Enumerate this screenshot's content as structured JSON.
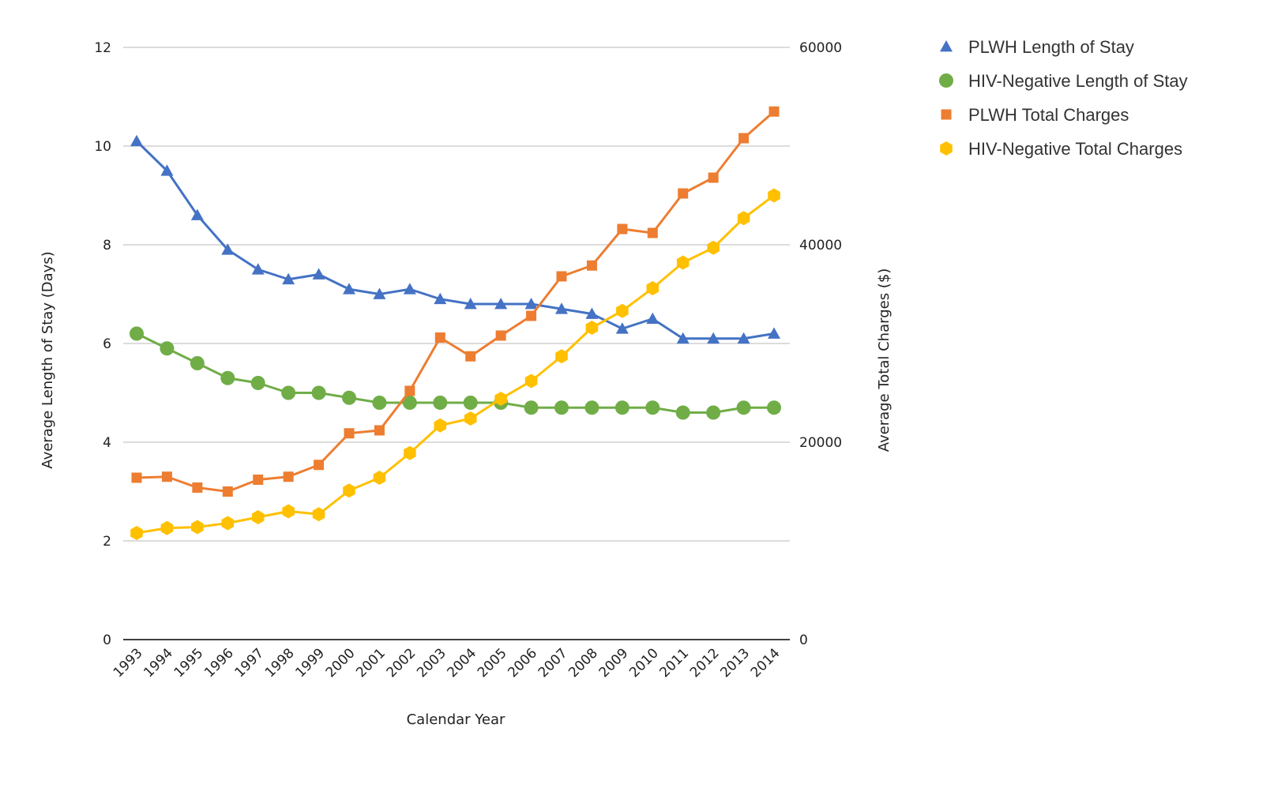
{
  "chart_data": {
    "type": "line",
    "title": "",
    "xlabel": "Calendar Year",
    "ylabel": "Average Length of Stay (Days)",
    "y2label": "Average Total Charges ($)",
    "categories": [
      "1993",
      "1994",
      "1995",
      "1996",
      "1997",
      "1998",
      "1999",
      "2000",
      "2001",
      "2002",
      "2003",
      "2004",
      "2005",
      "2006",
      "2007",
      "2008",
      "2009",
      "2010",
      "2011",
      "2012",
      "2013",
      "2014"
    ],
    "ylim": [
      0,
      12
    ],
    "y_ticks": [
      0,
      2,
      4,
      6,
      8,
      10,
      12
    ],
    "y2lim": [
      0,
      60000
    ],
    "y2_ticks": [
      0,
      20000,
      40000,
      60000
    ],
    "grid": true,
    "legend_position": "right",
    "series": [
      {
        "name": "PLWH Length of Stay",
        "axis": "left",
        "color": "#4472C4",
        "marker": "triangle",
        "values": [
          10.1,
          9.5,
          8.6,
          7.9,
          7.5,
          7.3,
          7.4,
          7.1,
          7.0,
          7.1,
          6.9,
          6.8,
          6.8,
          6.8,
          6.7,
          6.6,
          6.3,
          6.5,
          6.1,
          6.1,
          6.1,
          6.2
        ]
      },
      {
        "name": "HIV-Negative Length of Stay",
        "axis": "left",
        "color": "#70AD47",
        "marker": "circle",
        "values": [
          6.2,
          5.9,
          5.6,
          5.3,
          5.2,
          5.0,
          5.0,
          4.9,
          4.8,
          4.8,
          4.8,
          4.8,
          4.8,
          4.7,
          4.7,
          4.7,
          4.7,
          4.7,
          4.6,
          4.6,
          4.7,
          4.7
        ]
      },
      {
        "name": "PLWH Total Charges",
        "axis": "right",
        "color": "#ED7D31",
        "marker": "square",
        "values": [
          16400,
          16500,
          15400,
          15000,
          16200,
          16500,
          17700,
          20900,
          21200,
          25200,
          30600,
          28700,
          30800,
          32800,
          36800,
          37900,
          41600,
          41200,
          45200,
          46800,
          50800,
          53500
        ]
      },
      {
        "name": "HIV-Negative Total Charges",
        "axis": "right",
        "color": "#FFC000",
        "marker": "hexagon",
        "values": [
          10800,
          11300,
          11400,
          11800,
          12400,
          13000,
          12700,
          15100,
          16400,
          18900,
          21700,
          22400,
          24400,
          26200,
          28700,
          31600,
          33300,
          35600,
          38200,
          39700,
          42700,
          45000
        ]
      }
    ]
  }
}
